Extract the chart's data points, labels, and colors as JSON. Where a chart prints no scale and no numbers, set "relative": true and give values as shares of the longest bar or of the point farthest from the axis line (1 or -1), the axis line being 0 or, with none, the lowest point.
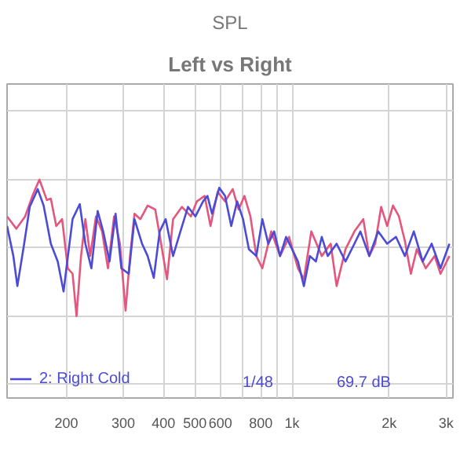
{
  "chart_data": {
    "type": "line",
    "title": "SPL",
    "subtitle": "Left vs Right",
    "relative": true,
    "log": "x",
    "grid": true,
    "legend": "bottom",
    "xlim": [
      131,
      3150
    ],
    "xticks": [
      200,
      300,
      400,
      500,
      600,
      {
        "value": 700,
        "label": null
      },
      800,
      {
        "value": 900,
        "label": null
      },
      {
        "value": 1000,
        "label": "1k"
      },
      {
        "value": 2000,
        "label": "2k"
      },
      {
        "value": 3000,
        "label": "3k"
      }
    ],
    "annotations": [
      "1/48",
      "69.7 dB"
    ],
    "series": [
      {
        "color": "#e4567e",
        "x": [
          131,
          140,
          149,
          157,
          165,
          174,
          179,
          186,
          194,
          202,
          209,
          215,
          222,
          229,
          237,
          247,
          258,
          269,
          281,
          293,
          305,
          315,
          325,
          339,
          357,
          377,
          393,
          410,
          428,
          456,
          486,
          507,
          536,
          559,
          588,
          620,
          655,
          683,
          712,
          743,
          775,
          809,
          862,
          918,
          979,
          1043,
          1088,
          1147,
          1236,
          1317,
          1374,
          1464,
          1560,
          1662,
          1734,
          1809,
          1888,
          1970,
          2054,
          2143,
          2236,
          2333,
          2434,
          2594,
          2764,
          2883,
          3072
        ],
        "values": [
          0.73,
          0.64,
          0.73,
          0.88,
          1,
          0.85,
          0.86,
          0.66,
          0.71,
          0.35,
          0.31,
          0,
          0.44,
          0.71,
          0.44,
          0.73,
          0.62,
          0.35,
          0.73,
          0.53,
          0.04,
          0.44,
          0.75,
          0.71,
          0.81,
          0.78,
          0.53,
          0.27,
          0.71,
          0.8,
          0.73,
          0.84,
          0.88,
          0.66,
          0.91,
          0.84,
          0.93,
          0.78,
          0.88,
          0.73,
          0.44,
          0.35,
          0.62,
          0.44,
          0.58,
          0.35,
          0.27,
          0.62,
          0.44,
          0.53,
          0.22,
          0.49,
          0.62,
          0.71,
          0.44,
          0.53,
          0.8,
          0.66,
          0.81,
          0.73,
          0.55,
          0.31,
          0.49,
          0.35,
          0.44,
          0.31,
          0.44
        ]
      },
      {
        "name": "2: Right Cold",
        "color": "#4b4bd6",
        "x": [
          131,
          137,
          141,
          148,
          154,
          163,
          170,
          179,
          188,
          196,
          200,
          209,
          220,
          229,
          239,
          250,
          260,
          272,
          284,
          296,
          312,
          325,
          343,
          357,
          373,
          389,
          406,
          428,
          451,
          476,
          502,
          530,
          547,
          565,
          595,
          620,
          648,
          676,
          705,
          735,
          775,
          809,
          844,
          880,
          918,
          958,
          1000,
          1043,
          1088,
          1135,
          1185,
          1236,
          1290,
          1374,
          1464,
          1560,
          1628,
          1734,
          1848,
          1970,
          2098,
          2236,
          2383,
          2539,
          2706,
          2883,
          3072
        ],
        "values": [
          0.66,
          0.44,
          0.22,
          0.53,
          0.8,
          0.93,
          0.81,
          0.53,
          0.4,
          0.18,
          0.35,
          0.71,
          0.82,
          0.53,
          0.35,
          0.77,
          0.62,
          0.4,
          0.75,
          0.35,
          0.31,
          0.71,
          0.53,
          0.44,
          0.28,
          0.62,
          0.71,
          0.44,
          0.62,
          0.8,
          0.73,
          0.84,
          0.88,
          0.75,
          0.94,
          0.88,
          0.66,
          0.84,
          0.71,
          0.49,
          0.44,
          0.71,
          0.53,
          0.62,
          0.44,
          0.58,
          0.49,
          0.4,
          0.22,
          0.44,
          0.4,
          0.58,
          0.44,
          0.53,
          0.4,
          0.53,
          0.62,
          0.44,
          0.62,
          0.53,
          0.58,
          0.44,
          0.62,
          0.4,
          0.53,
          0.35,
          0.53
        ]
      }
    ]
  }
}
